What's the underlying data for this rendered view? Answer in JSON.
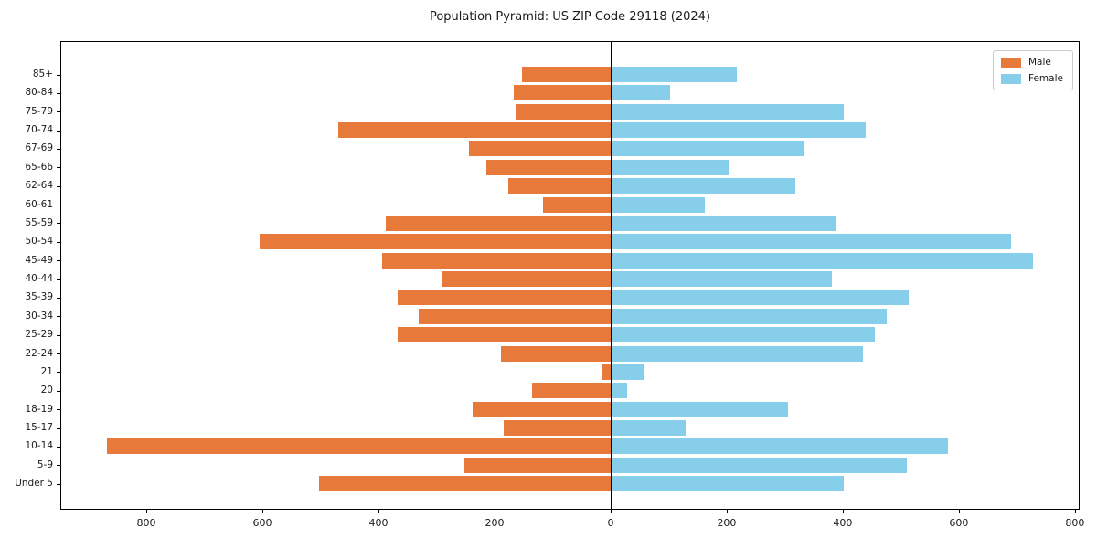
{
  "page": {
    "background_color": "#ffffff",
    "axis_color": "#000000",
    "text_color": "#1a1a1a"
  },
  "chart_data": {
    "type": "bar",
    "variant": "population-pyramid-horizontal-diverging",
    "title": "Population Pyramid: US ZIP Code 29118 (2024)",
    "xlabel": "",
    "ylabel": "",
    "categories_top_to_bottom": [
      "85+",
      "80-84",
      "75-79",
      "70-74",
      "67-69",
      "65-66",
      "62-64",
      "60-61",
      "55-59",
      "50-54",
      "45-49",
      "40-44",
      "35-39",
      "30-34",
      "25-29",
      "22-24",
      "21",
      "20",
      "18-19",
      "15-17",
      "10-14",
      "5-9",
      "Under 5"
    ],
    "series": [
      {
        "name": "Male",
        "side": "left",
        "color": "#e7793a",
        "values": [
          153,
          167,
          164,
          470,
          244,
          214,
          177,
          116,
          387,
          604,
          393,
          289,
          367,
          331,
          367,
          189,
          16,
          135,
          237,
          184,
          868,
          252,
          502
        ]
      },
      {
        "name": "Female",
        "side": "right",
        "color": "#87ceeb",
        "values": [
          218,
          103,
          401,
          439,
          333,
          204,
          319,
          162,
          388,
          690,
          728,
          382,
          514,
          475,
          455,
          435,
          57,
          29,
          305,
          129,
          581,
          510,
          401
        ]
      }
    ],
    "xlim": [
      -948,
      808
    ],
    "x_tick_values": [
      -800,
      -600,
      -400,
      -200,
      0,
      200,
      400,
      600,
      800
    ],
    "x_tick_labels": [
      "800",
      "600",
      "400",
      "200",
      "0",
      "200",
      "400",
      "600",
      "800"
    ],
    "zero_line": true,
    "grid": false,
    "legend": {
      "position": "upper-right",
      "entries": [
        "Male",
        "Female"
      ]
    }
  }
}
